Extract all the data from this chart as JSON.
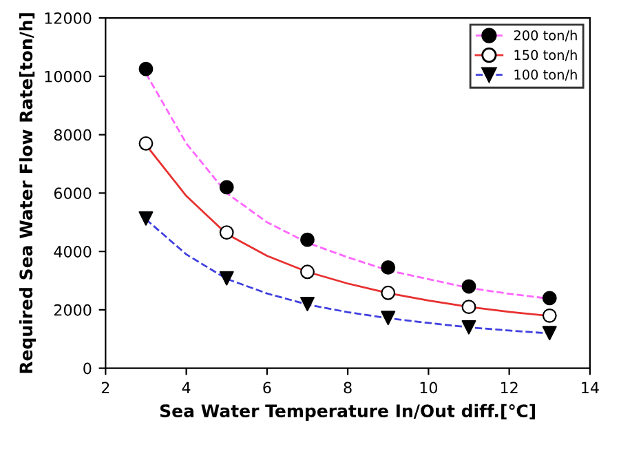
{
  "chart_data": {
    "type": "scatter",
    "xlabel": "Sea Water Temperature In/Out diff.[℃]",
    "ylabel": "Required Sea Water Flow Rate[ton/h]",
    "x": [
      3,
      5,
      7,
      9,
      11,
      13
    ],
    "xlim": [
      2,
      14
    ],
    "xticks": [
      2,
      4,
      6,
      8,
      10,
      12,
      14
    ],
    "ylim": [
      0,
      12000
    ],
    "yticks": [
      0,
      2000,
      4000,
      6000,
      8000,
      10000,
      12000
    ],
    "grid": false,
    "legend": "top right",
    "series": [
      {
        "name": "200 ton/h",
        "color": "#000000",
        "marker": "circle",
        "values": [
          10250,
          6200,
          4400,
          3450,
          2800,
          2400
        ]
      },
      {
        "type": "line",
        "color": "#ff66ff",
        "line_style": "dashed",
        "marker": "none",
        "x": [
          3,
          4,
          5,
          6,
          7,
          8,
          9,
          10,
          11,
          12,
          13
        ],
        "values": [
          10100,
          7700,
          6000,
          5000,
          4300,
          3800,
          3350,
          3050,
          2750,
          2550,
          2380
        ]
      },
      {
        "name": "150 ton/h",
        "color": "#ffffff",
        "marker": "circle",
        "values": [
          7700,
          4650,
          3300,
          2580,
          2100,
          1800
        ]
      },
      {
        "type": "line",
        "color": "#e83030",
        "line_style": "solid",
        "marker": "none",
        "x": [
          3,
          4,
          5,
          6,
          7,
          8,
          9,
          10,
          11,
          12,
          13
        ],
        "values": [
          7650,
          5900,
          4600,
          3850,
          3300,
          2900,
          2570,
          2320,
          2100,
          1930,
          1790
        ]
      },
      {
        "name": "100 ton/h",
        "color": "#000000",
        "marker": "triangle",
        "values": [
          5130,
          3080,
          2200,
          1720,
          1400,
          1200
        ]
      },
      {
        "type": "line",
        "color": "#4040e0",
        "line_style": "dashed",
        "marker": "none",
        "x": [
          3,
          4,
          5,
          6,
          7,
          8,
          9,
          10,
          11,
          12,
          13
        ],
        "values": [
          5100,
          3900,
          3060,
          2560,
          2180,
          1920,
          1710,
          1550,
          1400,
          1290,
          1190
        ]
      }
    ]
  }
}
